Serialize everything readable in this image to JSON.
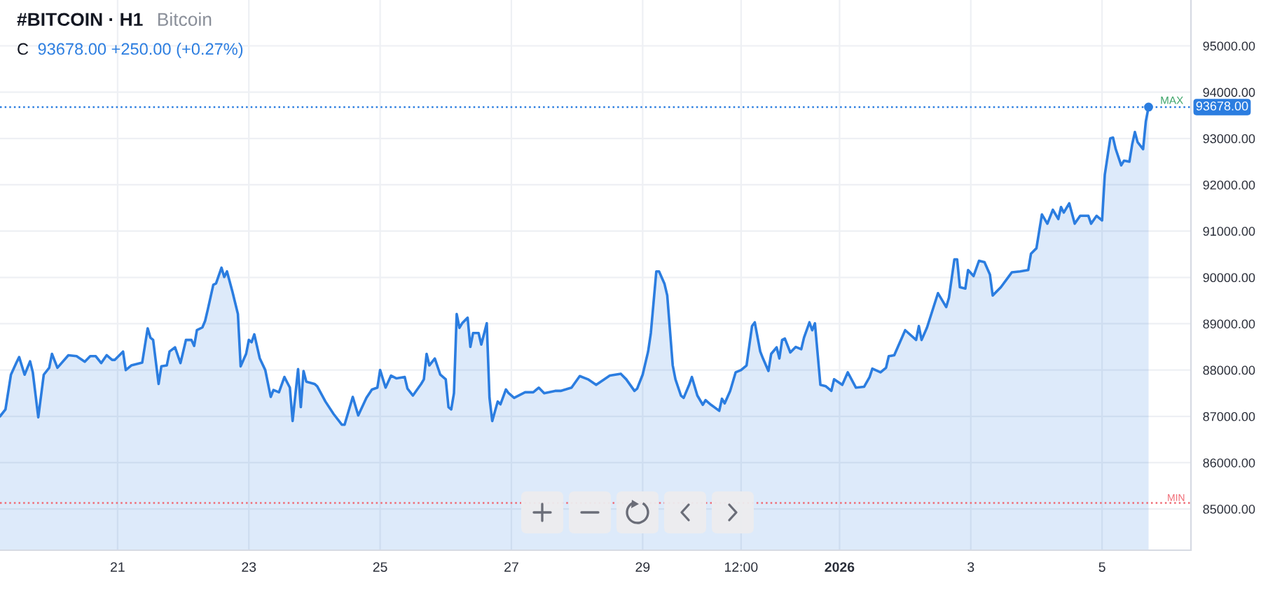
{
  "chart_data": {
    "type": "area",
    "title": "#BITCOIN · H1",
    "subtitle": "Bitcoin",
    "annotations": [
      "C",
      "93678.00 +250.00 (+0.27%)",
      {
        "text": "MAX",
        "x": "2026-01-05T17:00",
        "y": 93678
      }
    ],
    "series": [
      {
        "color": "#2b7de0",
        "x": [
          "2025-12-19T05:00",
          "2025-12-19T07:00",
          "2025-12-19T09:00",
          "2025-12-19T11:00",
          "2025-12-19T12:00",
          "2025-12-19T14:00",
          "2025-12-19T16:00",
          "2025-12-19T17:00",
          "2025-12-19T19:00",
          "2025-12-19T21:00",
          "2025-12-19T23:00",
          "2025-12-20T00:00",
          "2025-12-20T02:00",
          "2025-12-20T06:00",
          "2025-12-20T09:00",
          "2025-12-20T12:00",
          "2025-12-20T14:00",
          "2025-12-20T16:00",
          "2025-12-20T18:00",
          "2025-12-20T20:00",
          "2025-12-20T22:00",
          "2025-12-20T23:00",
          "2025-12-21T02:00",
          "2025-12-21T03:00",
          "2025-12-21T05:00",
          "2025-12-21T09:00",
          "2025-12-21T11:00",
          "2025-12-21T12:00",
          "2025-12-21T13:00",
          "2025-12-21T15:00",
          "2025-12-21T16:00",
          "2025-12-21T18:00",
          "2025-12-21T19:00",
          "2025-12-21T21:00",
          "2025-12-21T23:00",
          "2025-12-22T01:00",
          "2025-12-22T03:00",
          "2025-12-22T04:00",
          "2025-12-22T05:00",
          "2025-12-22T07:00",
          "2025-12-22T08:00",
          "2025-12-22T09:00",
          "2025-12-22T11:00",
          "2025-12-22T12:00",
          "2025-12-22T14:00",
          "2025-12-22T15:00",
          "2025-12-22T16:00",
          "2025-12-22T18:00",
          "2025-12-22T20:00",
          "2025-12-22T21:00",
          "2025-12-22T23:00",
          "2025-12-23T00:00",
          "2025-12-23T01:00",
          "2025-12-23T02:00",
          "2025-12-23T04:00",
          "2025-12-23T06:00",
          "2025-12-23T08:00",
          "2025-12-23T09:00",
          "2025-12-23T11:00",
          "2025-12-23T13:00",
          "2025-12-23T15:00",
          "2025-12-23T16:00",
          "2025-12-23T18:00",
          "2025-12-23T19:00",
          "2025-12-23T20:00",
          "2025-12-23T21:00",
          "2025-12-24T00:00",
          "2025-12-24T01:00",
          "2025-12-24T04:00",
          "2025-12-24T07:00",
          "2025-12-24T10:00",
          "2025-12-24T11:00",
          "2025-12-24T14:00",
          "2025-12-24T16:00",
          "2025-12-24T19:00",
          "2025-12-24T21:00",
          "2025-12-24T23:00",
          "2025-12-25T00:00",
          "2025-12-25T02:00",
          "2025-12-25T04:00",
          "2025-12-25T06:00",
          "2025-12-25T09:00",
          "2025-12-25T10:00",
          "2025-12-25T12:00",
          "2025-12-25T15:00",
          "2025-12-25T16:00",
          "2025-12-25T17:00",
          "2025-12-25T18:00",
          "2025-12-25T20:00",
          "2025-12-25T22:00",
          "2025-12-26T00:00",
          "2025-12-26T01:00",
          "2025-12-26T02:00",
          "2025-12-26T03:00",
          "2025-12-26T04:00",
          "2025-12-26T05:00",
          "2025-12-26T06:00",
          "2025-12-26T08:00",
          "2025-12-26T09:00",
          "2025-12-26T10:00",
          "2025-12-26T12:00",
          "2025-12-26T13:00",
          "2025-12-26T15:00",
          "2025-12-26T16:00",
          "2025-12-26T17:00",
          "2025-12-26T19:00",
          "2025-12-26T20:00",
          "2025-12-26T22:00",
          "2025-12-26T23:00",
          "2025-12-27T01:00",
          "2025-12-27T05:00",
          "2025-12-27T08:00",
          "2025-12-27T10:00",
          "2025-12-27T12:00",
          "2025-12-27T16:00",
          "2025-12-27T18:00",
          "2025-12-27T22:00",
          "2025-12-28T01:00",
          "2025-12-28T04:00",
          "2025-12-28T07:00",
          "2025-12-28T12:00",
          "2025-12-28T16:00",
          "2025-12-28T18:00",
          "2025-12-28T21:00",
          "2025-12-28T22:00",
          "2025-12-29T00:00",
          "2025-12-29T02:00",
          "2025-12-29T03:00",
          "2025-12-29T05:00",
          "2025-12-29T06:00",
          "2025-12-29T08:00",
          "2025-12-29T09:00",
          "2025-12-29T11:00",
          "2025-12-29T12:00",
          "2025-12-29T14:00",
          "2025-12-29T15:00",
          "2025-12-29T17:00",
          "2025-12-29T18:00",
          "2025-12-29T20:00",
          "2025-12-29T22:00",
          "2025-12-29T23:00",
          "2025-12-30T01:00",
          "2025-12-30T04:00",
          "2025-12-30T05:00",
          "2025-12-30T06:00",
          "2025-12-30T08:00",
          "2025-12-30T10:00",
          "2025-12-30T12:00",
          "2025-12-30T14:00",
          "2025-12-30T16:00",
          "2025-12-30T17:00",
          "2025-12-30T19:00",
          "2025-12-30T20:00",
          "2025-12-30T22:00",
          "2025-12-30T23:00",
          "2025-12-31T01:00",
          "2025-12-31T02:00",
          "2025-12-31T03:00",
          "2025-12-31T04:00",
          "2025-12-31T06:00",
          "2025-12-31T08:00",
          "2025-12-31T10:00",
          "2025-12-31T11:00",
          "2025-12-31T13:00",
          "2025-12-31T14:00",
          "2025-12-31T15:00",
          "2025-12-31T17:00",
          "2025-12-31T19:00",
          "2025-12-31T21:00",
          "2025-12-31T22:00",
          "2026-01-01T01:00",
          "2026-01-01T03:00",
          "2026-01-01T06:00",
          "2026-01-01T09:00",
          "2026-01-01T11:00",
          "2026-01-01T12:00",
          "2026-01-01T15:00",
          "2026-01-01T17:00",
          "2026-01-01T18:00",
          "2026-01-01T20:00",
          "2026-01-02T00:00",
          "2026-01-02T04:00",
          "2026-01-02T05:00",
          "2026-01-02T06:00",
          "2026-01-02T08:00",
          "2026-01-02T12:00",
          "2026-01-02T15:00",
          "2026-01-02T16:00",
          "2026-01-02T18:00",
          "2026-01-02T19:00",
          "2026-01-02T20:00",
          "2026-01-02T22:00",
          "2026-01-02T23:00",
          "2026-01-03T01:00",
          "2026-01-03T03:00",
          "2026-01-03T05:00",
          "2026-01-03T07:00",
          "2026-01-03T08:00",
          "2026-01-03T11:00",
          "2026-01-03T14:00",
          "2026-01-03T15:00",
          "2026-01-03T18:00",
          "2026-01-03T21:00",
          "2026-01-03T22:00",
          "2026-01-04T00:00",
          "2026-01-04T02:00",
          "2026-01-04T04:00",
          "2026-01-04T06:00",
          "2026-01-04T08:00",
          "2026-01-04T09:00",
          "2026-01-04T10:00",
          "2026-01-04T12:00",
          "2026-01-04T14:00",
          "2026-01-04T16:00",
          "2026-01-04T19:00",
          "2026-01-04T20:00",
          "2026-01-04T22:00",
          "2026-01-05T00:00",
          "2026-01-05T01:00",
          "2026-01-05T03:00",
          "2026-01-05T04:00",
          "2026-01-05T05:00",
          "2026-01-05T07:00",
          "2026-01-05T08:00",
          "2026-01-05T10:00",
          "2026-01-05T11:00",
          "2026-01-05T12:00",
          "2026-01-05T13:00",
          "2026-01-05T15:00",
          "2026-01-05T16:00",
          "2026-01-05T17:00"
        ],
        "values": [
          87000,
          87150,
          87900,
          88160,
          88280,
          87900,
          88190,
          87950,
          86980,
          87900,
          88050,
          88350,
          88050,
          88320,
          88300,
          88180,
          88300,
          88300,
          88150,
          88320,
          88220,
          88220,
          88400,
          88000,
          88100,
          88160,
          88900,
          88700,
          88650,
          87700,
          88080,
          88100,
          88400,
          88490,
          88150,
          88650,
          88650,
          88520,
          88860,
          88920,
          89060,
          89310,
          89840,
          89870,
          90210,
          90010,
          90130,
          89690,
          89210,
          88080,
          88350,
          88650,
          88600,
          88770,
          88250,
          88000,
          87420,
          87570,
          87520,
          87850,
          87620,
          86900,
          88020,
          87200,
          87980,
          87750,
          87700,
          87650,
          87320,
          87050,
          86820,
          86820,
          87420,
          87020,
          87400,
          87580,
          87620,
          88000,
          87620,
          87880,
          87820,
          87850,
          87600,
          87450,
          87700,
          87800,
          88350,
          88100,
          88250,
          87900,
          87800,
          87200,
          87150,
          87500,
          89210,
          88910,
          89010,
          89130,
          88500,
          88800,
          88800,
          88550,
          89010,
          87400,
          86900,
          87320,
          87260,
          87580,
          87500,
          87400,
          87520,
          87520,
          87620,
          87500,
          87550,
          87550,
          87620,
          87870,
          87800,
          87680,
          87880,
          87920,
          87800,
          87550,
          87600,
          87900,
          88400,
          88800,
          90130,
          90130,
          89860,
          89610,
          88100,
          87800,
          87450,
          87400,
          87680,
          87850,
          87450,
          87250,
          87350,
          87250,
          87120,
          87380,
          87280,
          87550,
          87950,
          88000,
          88100,
          88950,
          89030,
          88400,
          88250,
          87980,
          88350,
          88490,
          88250,
          88650,
          88680,
          88380,
          88500,
          88450,
          88700,
          89030,
          88860,
          89010,
          87680,
          87650,
          87550,
          87800,
          87680,
          87950,
          87620,
          87640,
          87850,
          88030,
          87950,
          88050,
          88300,
          88320,
          88860,
          88650,
          88950,
          88650,
          88920,
          89660,
          89360,
          89560,
          90390,
          90390,
          89790,
          89760,
          90160,
          90030,
          90360,
          90330,
          90060,
          89610,
          89790,
          90030,
          90110,
          90130,
          90160,
          90510,
          90630,
          91360,
          91160,
          91460,
          91260,
          91520,
          91400,
          91600,
          91160,
          91330,
          91330,
          91160,
          91330,
          91230,
          92220,
          93000,
          93020,
          92770,
          92420,
          92520,
          92500,
          92870,
          93140,
          92920,
          92770,
          93370,
          93678
        ]
      }
    ],
    "xlim": [
      "2025-12-19T05:00",
      "2026-01-06T08:30"
    ],
    "xticks": [
      {
        "value": "2025-12-21",
        "label": "21"
      },
      {
        "value": "2025-12-23",
        "label": "23"
      },
      {
        "value": "2025-12-25",
        "label": "25"
      },
      {
        "value": "2025-12-27",
        "label": "27"
      },
      {
        "value": "2025-12-29",
        "label": "29"
      },
      {
        "value": "2025-12-30T12:00",
        "label": "12:00"
      },
      {
        "value": "2026-01-01",
        "label": "2026"
      },
      {
        "value": "2026-01-03",
        "label": "3"
      },
      {
        "value": "2026-01-05",
        "label": "5"
      }
    ],
    "ylim": [
      84110,
      95990
    ],
    "yticks": [
      {
        "value": 85000,
        "label": "85000.00"
      },
      {
        "value": 86000,
        "label": "86000.00"
      },
      {
        "value": 87000,
        "label": "87000.00"
      },
      {
        "value": 88000,
        "label": "88000.00"
      },
      {
        "value": 89000,
        "label": "89000.00"
      },
      {
        "value": 90000,
        "label": "90000.00"
      },
      {
        "value": 91000,
        "label": "91000.00"
      },
      {
        "value": 92000,
        "label": "92000.00"
      },
      {
        "value": 93000,
        "label": "93000.00"
      },
      {
        "value": 94000,
        "label": "94000.00"
      },
      {
        "value": 95000,
        "label": "95000.00"
      }
    ],
    "ref_lines": [
      {
        "axis": "y",
        "value": 93678,
        "label": "93678.00",
        "color": "#2b7de0",
        "line_style": "dotted"
      },
      {
        "axis": "y",
        "value": 85130,
        "label": "MIN",
        "color": "#f06b75",
        "line_style": "dotted"
      }
    ],
    "grid": true
  }
}
